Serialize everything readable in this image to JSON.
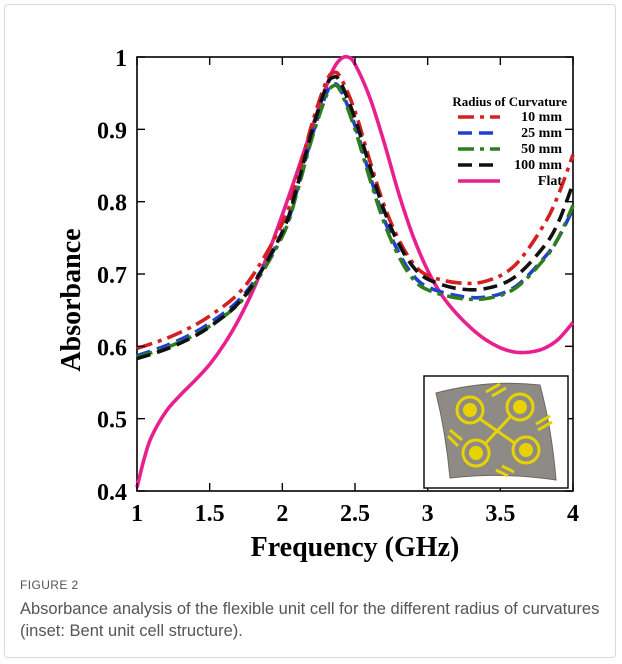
{
  "figure": {
    "label": "FIGURE 2",
    "caption": "Absorbance analysis of the flexible unit cell for the different radius of curvatures (inset: Bent unit cell structure)."
  },
  "inset": {
    "description_icon": "bent-unit-cell-icon"
  },
  "chart_data": {
    "type": "line",
    "xlabel": "Frequency (GHz)",
    "ylabel": "Absorbance",
    "xlim": [
      1,
      4
    ],
    "ylim": [
      0.4,
      1
    ],
    "xticks": [
      1,
      1.5,
      2,
      2.5,
      3,
      3.5,
      4
    ],
    "xtick_labels": [
      "1",
      "1.5",
      "2",
      "2.5",
      "3",
      "3.5",
      "4"
    ],
    "yticks": [
      0.4,
      0.5,
      0.6,
      0.7,
      0.8,
      0.9,
      1.0
    ],
    "ytick_labels": [
      "0.4",
      "0.5",
      "0.6",
      "0.7",
      "0.8",
      "0.9",
      "1"
    ],
    "legend_title": "Radius of Curvature",
    "legend_position": "top-right",
    "grid": false,
    "series": [
      {
        "name": "10 mm",
        "color": "#d42020",
        "dash": "dash-dot",
        "x": [
          1.0,
          1.25,
          1.5,
          1.75,
          2.0,
          2.1,
          2.2,
          2.3,
          2.35,
          2.4,
          2.5,
          2.6,
          2.7,
          2.8,
          2.9,
          3.0,
          3.2,
          3.4,
          3.6,
          3.8,
          3.9,
          4.0
        ],
        "y": [
          0.597,
          0.615,
          0.642,
          0.685,
          0.77,
          0.83,
          0.905,
          0.965,
          0.978,
          0.972,
          0.925,
          0.858,
          0.795,
          0.748,
          0.715,
          0.698,
          0.688,
          0.69,
          0.712,
          0.768,
          0.81,
          0.865
        ]
      },
      {
        "name": "25 mm",
        "color": "#1f3fd6",
        "dash": "dashed",
        "x": [
          1.0,
          1.25,
          1.5,
          1.75,
          2.0,
          2.1,
          2.2,
          2.3,
          2.35,
          2.4,
          2.5,
          2.6,
          2.7,
          2.8,
          2.9,
          3.0,
          3.2,
          3.4,
          3.6,
          3.8,
          3.9,
          4.0
        ],
        "y": [
          0.587,
          0.605,
          0.632,
          0.675,
          0.755,
          0.815,
          0.888,
          0.948,
          0.962,
          0.955,
          0.905,
          0.838,
          0.776,
          0.73,
          0.698,
          0.682,
          0.67,
          0.668,
          0.682,
          0.722,
          0.75,
          0.79
        ]
      },
      {
        "name": "50 mm",
        "color": "#2e7d1f",
        "dash": "dash-dot",
        "x": [
          1.0,
          1.25,
          1.5,
          1.75,
          2.0,
          2.1,
          2.2,
          2.3,
          2.35,
          2.4,
          2.5,
          2.6,
          2.7,
          2.8,
          2.9,
          3.0,
          3.2,
          3.4,
          3.6,
          3.8,
          3.9,
          4.0
        ],
        "y": [
          0.585,
          0.602,
          0.628,
          0.67,
          0.752,
          0.812,
          0.885,
          0.945,
          0.96,
          0.953,
          0.9,
          0.833,
          0.771,
          0.725,
          0.693,
          0.678,
          0.667,
          0.666,
          0.68,
          0.72,
          0.75,
          0.795
        ]
      },
      {
        "name": "100 mm",
        "color": "#111111",
        "dash": "dashed",
        "x": [
          1.0,
          1.25,
          1.5,
          1.75,
          2.0,
          2.1,
          2.2,
          2.3,
          2.35,
          2.4,
          2.5,
          2.6,
          2.7,
          2.8,
          2.9,
          3.0,
          3.2,
          3.4,
          3.6,
          3.8,
          3.9,
          4.0
        ],
        "y": [
          0.583,
          0.6,
          0.627,
          0.672,
          0.758,
          0.82,
          0.895,
          0.958,
          0.972,
          0.965,
          0.915,
          0.85,
          0.788,
          0.742,
          0.71,
          0.693,
          0.68,
          0.68,
          0.696,
          0.738,
          0.772,
          0.825
        ]
      },
      {
        "name": "Flat",
        "color": "#e8208f",
        "dash": "solid",
        "x": [
          1.0,
          1.05,
          1.1,
          1.2,
          1.3,
          1.4,
          1.5,
          1.6,
          1.7,
          1.8,
          1.9,
          2.0,
          2.1,
          2.2,
          2.3,
          2.35,
          2.4,
          2.45,
          2.5,
          2.6,
          2.7,
          2.8,
          2.9,
          3.0,
          3.1,
          3.2,
          3.3,
          3.4,
          3.5,
          3.6,
          3.7,
          3.8,
          3.9,
          4.0
        ],
        "y": [
          0.405,
          0.445,
          0.475,
          0.51,
          0.533,
          0.553,
          0.575,
          0.603,
          0.637,
          0.678,
          0.727,
          0.782,
          0.84,
          0.9,
          0.958,
          0.983,
          0.997,
          1.0,
          0.99,
          0.945,
          0.882,
          0.812,
          0.752,
          0.705,
          0.67,
          0.645,
          0.625,
          0.609,
          0.598,
          0.592,
          0.592,
          0.597,
          0.61,
          0.633
        ]
      }
    ]
  }
}
